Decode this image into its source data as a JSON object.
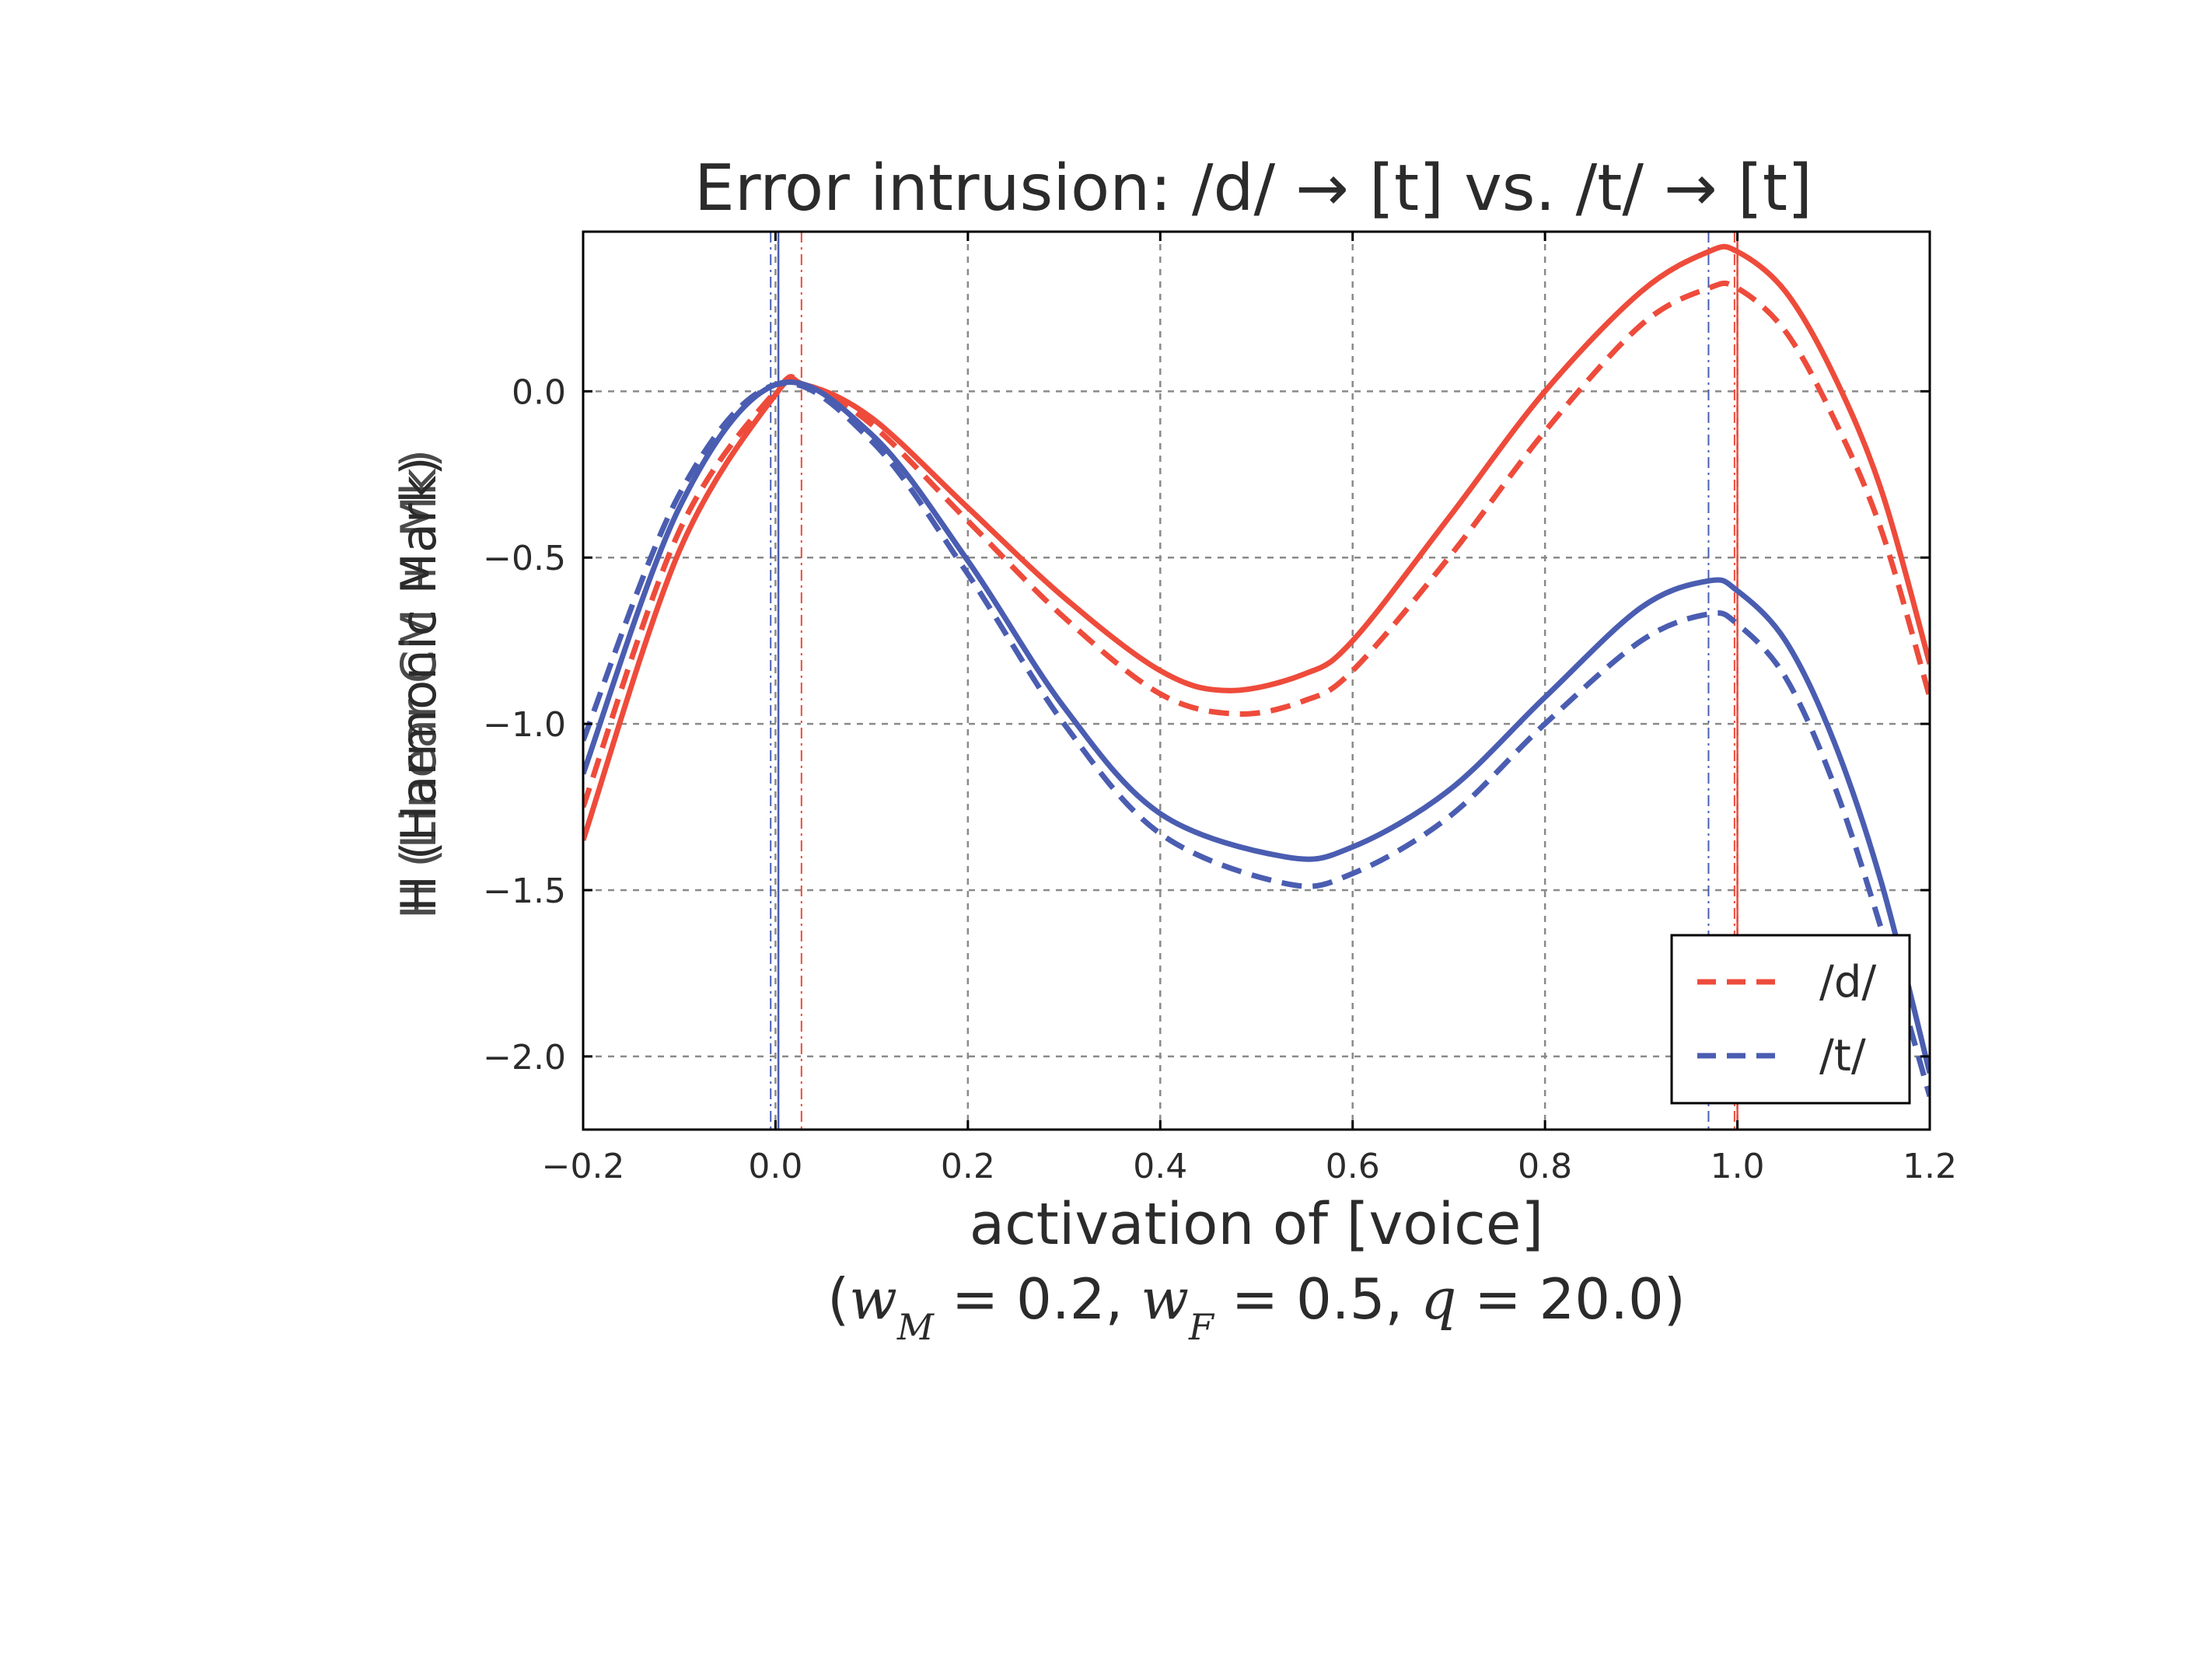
{
  "chart_data": {
    "type": "line",
    "title": "Error intrusion: /d/ → [t] vs. /t/ → [t]",
    "xlabel": "activation of [voice]",
    "subtitle": "(w_M = 0.2, w_F = 0.5, q = 20.0)",
    "ylabel_overlay": [
      "H (Harmonic Mark)",
      "H (Linear CM + Mk)"
    ],
    "xlim": [
      -0.2,
      1.2
    ],
    "ylim": [
      -2.22,
      0.48
    ],
    "xticks": [
      -0.2,
      0.0,
      0.2,
      0.4,
      0.6,
      0.8,
      1.0,
      1.2
    ],
    "xtick_labels": [
      "−0.2",
      "0.0",
      "0.2",
      "0.4",
      "0.6",
      "0.8",
      "1.0",
      "1.2"
    ],
    "yticks": [
      0.0,
      -0.5,
      -1.0,
      -1.5,
      -2.0
    ],
    "ytick_labels": [
      "0.0",
      "−0.5",
      "−1.0",
      "−1.5",
      "−2.0"
    ],
    "grid": true,
    "legend_position": "bottom-right",
    "legend": [
      {
        "label": "/d/",
        "color": "#ee4b3b",
        "style": "dashed"
      },
      {
        "label": "/t/",
        "color": "#4a5db1",
        "style": "dashed"
      }
    ],
    "series": [
      {
        "name": "/d/ solid",
        "color": "#ee4b3b",
        "style": "solid",
        "x": [
          -0.2,
          -0.1,
          0.0,
          0.03,
          0.1,
          0.2,
          0.3,
          0.4,
          0.47,
          0.55,
          0.6,
          0.7,
          0.8,
          0.9,
          0.97,
          1.0,
          1.05,
          1.1,
          1.15,
          1.2
        ],
        "y": [
          -1.35,
          -0.48,
          -0.01,
          0.02,
          -0.08,
          -0.35,
          -0.62,
          -0.84,
          -0.9,
          -0.85,
          -0.75,
          -0.38,
          0.0,
          0.3,
          0.42,
          0.42,
          0.3,
          0.05,
          -0.3,
          -0.82
        ]
      },
      {
        "name": "/d/ dashed",
        "color": "#ee4b3b",
        "style": "dashed",
        "x": [
          -0.2,
          -0.1,
          0.0,
          0.03,
          0.1,
          0.2,
          0.3,
          0.4,
          0.48,
          0.55,
          0.6,
          0.7,
          0.8,
          0.9,
          0.97,
          1.0,
          1.05,
          1.1,
          1.15,
          1.2
        ],
        "y": [
          -1.25,
          -0.42,
          0.0,
          0.02,
          -0.1,
          -0.39,
          -0.68,
          -0.91,
          -0.97,
          -0.93,
          -0.84,
          -0.5,
          -0.12,
          0.2,
          0.31,
          0.31,
          0.18,
          -0.08,
          -0.42,
          -0.92
        ]
      },
      {
        "name": "/t/ solid",
        "color": "#4a5db1",
        "style": "solid",
        "x": [
          -0.2,
          -0.1,
          0.0,
          0.1,
          0.2,
          0.3,
          0.4,
          0.53,
          0.6,
          0.7,
          0.8,
          0.9,
          0.97,
          1.0,
          1.05,
          1.1,
          1.15,
          1.2
        ],
        "y": [
          -1.15,
          -0.35,
          0.02,
          -0.13,
          -0.51,
          -0.95,
          -1.27,
          -1.4,
          -1.37,
          -1.2,
          -0.92,
          -0.65,
          -0.57,
          -0.6,
          -0.75,
          -1.05,
          -1.48,
          -2.05
        ]
      },
      {
        "name": "/t/ dashed",
        "color": "#4a5db1",
        "style": "dashed",
        "x": [
          -0.2,
          -0.1,
          0.0,
          0.1,
          0.2,
          0.3,
          0.4,
          0.53,
          0.6,
          0.7,
          0.8,
          0.9,
          0.97,
          1.0,
          1.05,
          1.1,
          1.15,
          1.2
        ],
        "y": [
          -1.05,
          -0.31,
          0.02,
          -0.15,
          -0.55,
          -1.0,
          -1.33,
          -1.48,
          -1.45,
          -1.28,
          -1.0,
          -0.75,
          -0.67,
          -0.7,
          -0.86,
          -1.18,
          -1.62,
          -2.12
        ]
      }
    ],
    "vertical_lines": [
      {
        "x": -0.005,
        "color": "#4a5db1",
        "style": "dashdot"
      },
      {
        "x": 0.003,
        "color": "#4a5db1",
        "style": "solid"
      },
      {
        "x": 0.027,
        "color": "#ee4b3b",
        "style": "dashdot"
      },
      {
        "x": 0.97,
        "color": "#4a5db1",
        "style": "dashdot"
      },
      {
        "x": 0.997,
        "color": "#ee4b3b",
        "style": "dashdot"
      },
      {
        "x": 1.0,
        "color": "#ee4b3b",
        "style": "solid"
      }
    ]
  }
}
